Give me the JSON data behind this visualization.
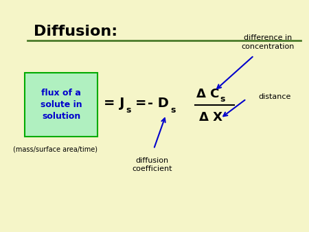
{
  "bg_color": "#f5f5c8",
  "title": "Diffusion:",
  "title_color": "#000000",
  "title_fontsize": 16,
  "line_color": "#4a7a2a",
  "formula_color": "#000000",
  "label_color": "#0000cc",
  "box_color": "#b0f0c0",
  "box_edge_color": "#00aa00",
  "flux_box_text": "flux of a\nsolute in\nsolution",
  "mass_text": "(mass/surface area/time)",
  "label_diff_conc": "difference in\nconcentration",
  "label_distance": "distance",
  "label_diffusion_coeff": "diffusion\ncoefficient"
}
